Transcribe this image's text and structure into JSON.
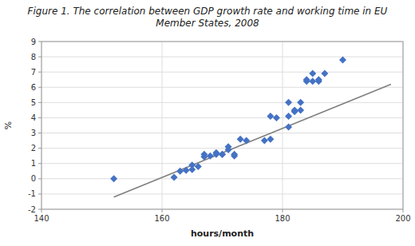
{
  "chart_data": {
    "type": "scatter",
    "title": "Figure 1. The correlation between GDP growth rate and working time in EU\nMember States, 2008",
    "xlabel": "hours/month",
    "ylabel": "%",
    "x": [
      152,
      162,
      163,
      164,
      165,
      165,
      166,
      167,
      167,
      168,
      169,
      169,
      170,
      170,
      171,
      171,
      172,
      172,
      173,
      174,
      177,
      178,
      178,
      179,
      181,
      181,
      181,
      182,
      182,
      183,
      183,
      184,
      184,
      185,
      185,
      186,
      186,
      187,
      190
    ],
    "values": [
      0.0,
      0.1,
      0.5,
      0.55,
      0.6,
      0.9,
      0.8,
      1.45,
      1.6,
      1.5,
      1.6,
      1.7,
      1.6,
      1.6,
      1.9,
      2.1,
      1.5,
      1.6,
      2.6,
      2.5,
      2.5,
      2.6,
      4.1,
      4.0,
      3.4,
      4.1,
      5.0,
      4.4,
      4.5,
      4.5,
      5.0,
      6.4,
      6.5,
      6.4,
      6.9,
      6.4,
      6.5,
      6.9,
      7.8
    ],
    "color": "#4472C4",
    "marker": "diamond",
    "trendline": {
      "x": [
        152,
        198
      ],
      "values": [
        -1.2,
        6.2
      ],
      "color": "#7f7f7f"
    },
    "xlim": [
      140,
      200
    ],
    "ylim": [
      -2,
      9
    ],
    "xticks": [
      140,
      160,
      180,
      200
    ],
    "yticks": [
      -2,
      -1,
      0,
      1,
      2,
      3,
      4,
      5,
      6,
      7,
      8,
      9
    ],
    "grid": true
  }
}
